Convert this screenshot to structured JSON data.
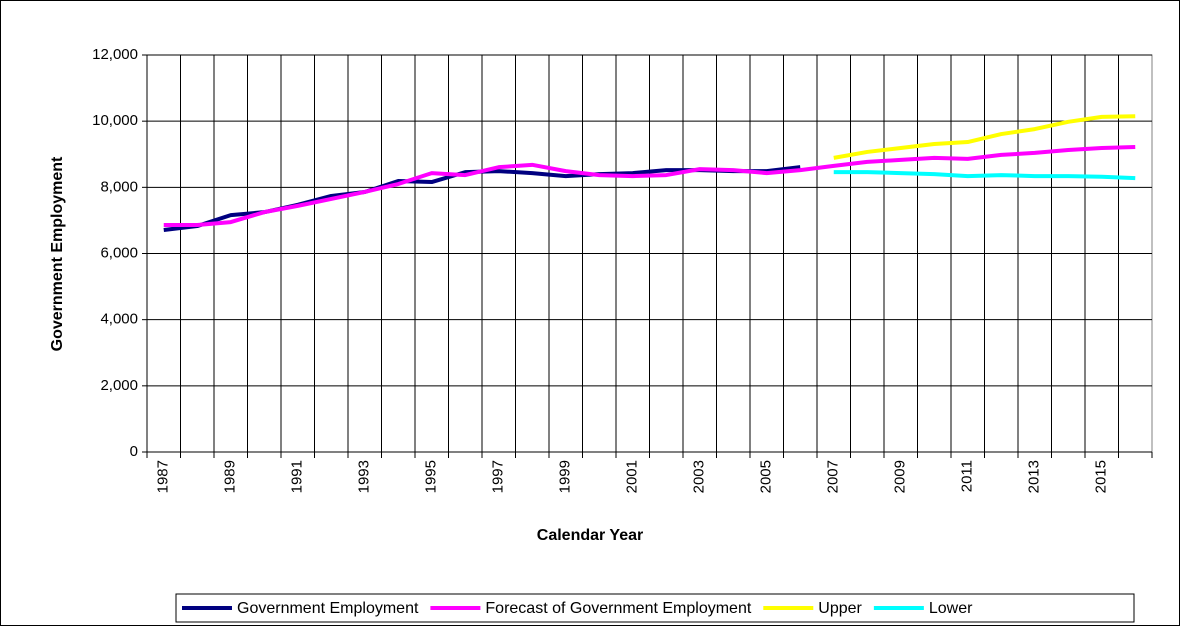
{
  "chart_data": {
    "type": "line",
    "x_label": "Calendar Year",
    "y_label": "Government Employment",
    "categories": [
      1987,
      null,
      1989,
      null,
      1991,
      null,
      1993,
      null,
      1995,
      null,
      1997,
      null,
      1999,
      null,
      2001,
      null,
      2003,
      null,
      2005,
      null,
      2007,
      null,
      2009,
      null,
      2011,
      null,
      2013,
      null,
      2015,
      null
    ],
    "series": [
      {
        "name": "Government Employment",
        "color": "#000080",
        "values": [
          6710,
          6830,
          7160,
          7250,
          7470,
          7740,
          7860,
          8190,
          8160,
          8460,
          8490,
          8430,
          8340,
          8400,
          8430,
          8520,
          8520,
          8490,
          8490,
          8610,
          null,
          null,
          null,
          null,
          null,
          null,
          null,
          null,
          null,
          null
        ]
      },
      {
        "name": "Forecast of Government Employment",
        "color": "#ff00ff",
        "values": [
          6860,
          6860,
          6950,
          7250,
          7440,
          7650,
          7860,
          8100,
          8430,
          8370,
          8610,
          8680,
          8490,
          8370,
          8340,
          8370,
          8550,
          8520,
          8430,
          8520,
          8650,
          8770,
          8830,
          8890,
          8860,
          8980,
          9040,
          9130,
          9190,
          9220
        ]
      },
      {
        "name": "Upper",
        "color": "#ffff00",
        "values": [
          null,
          null,
          null,
          null,
          null,
          null,
          null,
          null,
          null,
          null,
          null,
          null,
          null,
          null,
          null,
          null,
          null,
          null,
          null,
          null,
          8890,
          9070,
          9190,
          9310,
          9370,
          9610,
          9760,
          9980,
          10130,
          10150
        ]
      },
      {
        "name": "Lower",
        "color": "#00ffff",
        "values": [
          null,
          null,
          null,
          null,
          null,
          null,
          null,
          null,
          null,
          null,
          null,
          null,
          null,
          null,
          null,
          null,
          null,
          null,
          null,
          null,
          8460,
          8460,
          8430,
          8400,
          8340,
          8370,
          8340,
          8340,
          8320,
          8280
        ]
      }
    ],
    "ylim": [
      0,
      12000
    ],
    "yticks": [
      0,
      {
        "value": 2000,
        "label": "2,000"
      },
      {
        "value": 4000,
        "label": "4,000"
      },
      {
        "value": 6000,
        "label": "6,000"
      },
      {
        "value": 8000,
        "label": "8,000"
      },
      {
        "value": 10000,
        "label": "10,000"
      },
      {
        "value": 12000,
        "label": "12,000"
      }
    ],
    "grid": true,
    "legend": "bottom"
  }
}
